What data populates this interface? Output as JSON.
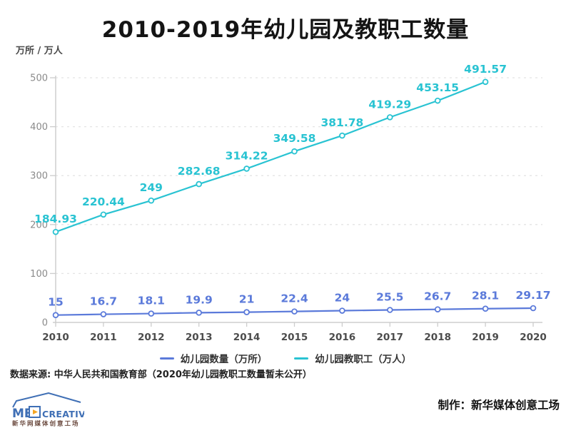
{
  "title": "2010-2019年幼儿园及教职工数量",
  "unit_label": "万所 / 万人",
  "chart_data": {
    "type": "line",
    "x": [
      "2010",
      "2011",
      "2012",
      "2013",
      "2014",
      "2015",
      "2016",
      "2017",
      "2018",
      "2019",
      "2020"
    ],
    "series": [
      {
        "name": "幼儿园数量（万所）",
        "color": "#5b7ada",
        "values": [
          15,
          16.7,
          18.1,
          19.9,
          21,
          22.4,
          24,
          25.5,
          26.7,
          28.1,
          29.17
        ]
      },
      {
        "name": "幼儿园教职工（万人）",
        "color": "#29c3d2",
        "values": [
          184.93,
          220.44,
          249,
          282.68,
          314.22,
          349.58,
          381.78,
          419.29,
          453.15,
          491.57
        ]
      }
    ],
    "title": "2010-2019年幼儿园及教职工数量",
    "ylabel": "万所 / 万人",
    "ylim": [
      0,
      500
    ],
    "yticks": [
      0,
      100,
      200,
      300,
      400,
      500
    ],
    "grid": "horizontal-dashed",
    "legend_position": "bottom",
    "data_labels": true
  },
  "colors": {
    "kindergarten_line": "#5b7ada",
    "staff_line": "#29c3d2",
    "grid": "#e4e4e4",
    "axis": "#cdcdcd",
    "y_tick_text": "#8a8a8a",
    "x_tick_text": "#4c4c4c"
  },
  "source_note": "数据来源: 中华人民共和国教育部（2020年幼儿园教职工数量暂未公开）",
  "credit": "制作：新华媒体创意工场",
  "logo": {
    "brand_left": "ME",
    "brand_right": "CREATIVE",
    "subtitle": "新华网媒体创意工场",
    "brand_color": "#3f6fb5",
    "play_icon_color": "#f5a623"
  }
}
